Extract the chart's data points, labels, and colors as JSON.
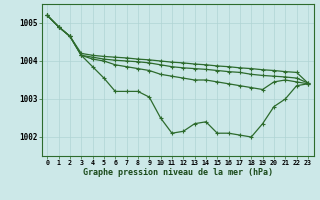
{
  "xlabel": "Graphe pression niveau de la mer (hPa)",
  "ylim": [
    1001.5,
    1005.5
  ],
  "xlim": [
    -0.5,
    23.5
  ],
  "xticks": [
    0,
    1,
    2,
    3,
    4,
    5,
    6,
    7,
    8,
    9,
    10,
    11,
    12,
    13,
    14,
    15,
    16,
    17,
    18,
    19,
    20,
    21,
    22,
    23
  ],
  "yticks": [
    1002,
    1003,
    1004,
    1005
  ],
  "bg_color": "#cce8e8",
  "grid_color": "#b0d4d4",
  "line_color": "#2d6b2d",
  "lines": [
    [
      1005.2,
      1004.9,
      1004.65,
      1004.15,
      1003.85,
      1003.55,
      1003.2,
      1003.2,
      1003.2,
      1003.05,
      1002.5,
      1002.1,
      1002.15,
      1002.35,
      1002.4,
      1002.1,
      1002.1,
      1002.05,
      1002.0,
      1002.35,
      1002.8,
      1003.0,
      1003.35,
      1003.4
    ],
    [
      1005.2,
      1004.9,
      1004.65,
      1004.15,
      1004.05,
      1004.0,
      1003.9,
      1003.85,
      1003.8,
      1003.75,
      1003.65,
      1003.6,
      1003.55,
      1003.5,
      1003.5,
      1003.45,
      1003.4,
      1003.35,
      1003.3,
      1003.25,
      1003.45,
      1003.5,
      1003.45,
      1003.4
    ],
    [
      1005.2,
      1004.9,
      1004.65,
      1004.15,
      1004.1,
      1004.05,
      1004.02,
      1004.0,
      1003.98,
      1003.95,
      1003.9,
      1003.85,
      1003.82,
      1003.8,
      1003.78,
      1003.75,
      1003.72,
      1003.7,
      1003.65,
      1003.62,
      1003.6,
      1003.58,
      1003.55,
      1003.42
    ],
    [
      1005.2,
      1004.9,
      1004.65,
      1004.2,
      1004.15,
      1004.12,
      1004.1,
      1004.08,
      1004.05,
      1004.03,
      1004.0,
      1003.97,
      1003.95,
      1003.92,
      1003.9,
      1003.87,
      1003.85,
      1003.82,
      1003.8,
      1003.77,
      1003.75,
      1003.72,
      1003.7,
      1003.42
    ]
  ],
  "marker": "+",
  "markersize": 3.5,
  "linewidth": 0.9
}
